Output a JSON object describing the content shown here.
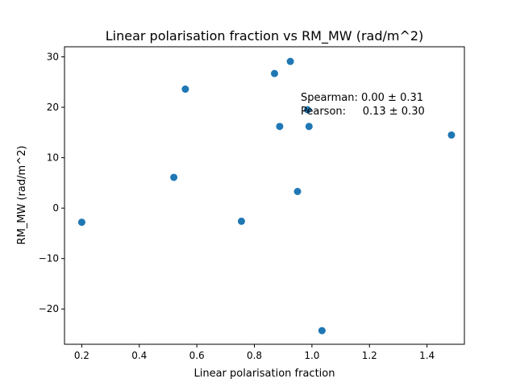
{
  "chart_data": {
    "type": "scatter",
    "title": "Linear polarisation fraction vs RM_MW (rad/m^2)",
    "xlabel": "Linear polarisation fraction",
    "ylabel": "RM_MW (rad/m^2)",
    "xlim": [
      0.14,
      1.53
    ],
    "ylim": [
      -27,
      32
    ],
    "xticks": [
      0.2,
      0.4,
      0.6,
      0.8,
      1.0,
      1.2,
      1.4
    ],
    "xtick_labels": [
      "0.2",
      "0.4",
      "0.6",
      "0.8",
      "1.0",
      "1.2",
      "1.4"
    ],
    "yticks": [
      -20,
      -10,
      0,
      10,
      20,
      30
    ],
    "ytick_labels": [
      "−20",
      "−10",
      "0",
      "10",
      "20",
      "30"
    ],
    "grid": false,
    "marker_color": "#1f77b4",
    "series": [
      {
        "x": [
          0.2,
          0.52,
          0.56,
          0.755,
          0.87,
          0.888,
          0.925,
          0.95,
          0.985,
          0.99,
          1.035,
          1.485
        ],
        "y": [
          -2.8,
          6.1,
          23.6,
          -2.6,
          26.7,
          16.2,
          29.1,
          3.3,
          19.5,
          16.2,
          -24.3,
          14.5
        ]
      }
    ],
    "annotations": [
      "Spearman: 0.00 ± 0.31",
      "Pearson:     0.13 ± 0.30"
    ]
  }
}
